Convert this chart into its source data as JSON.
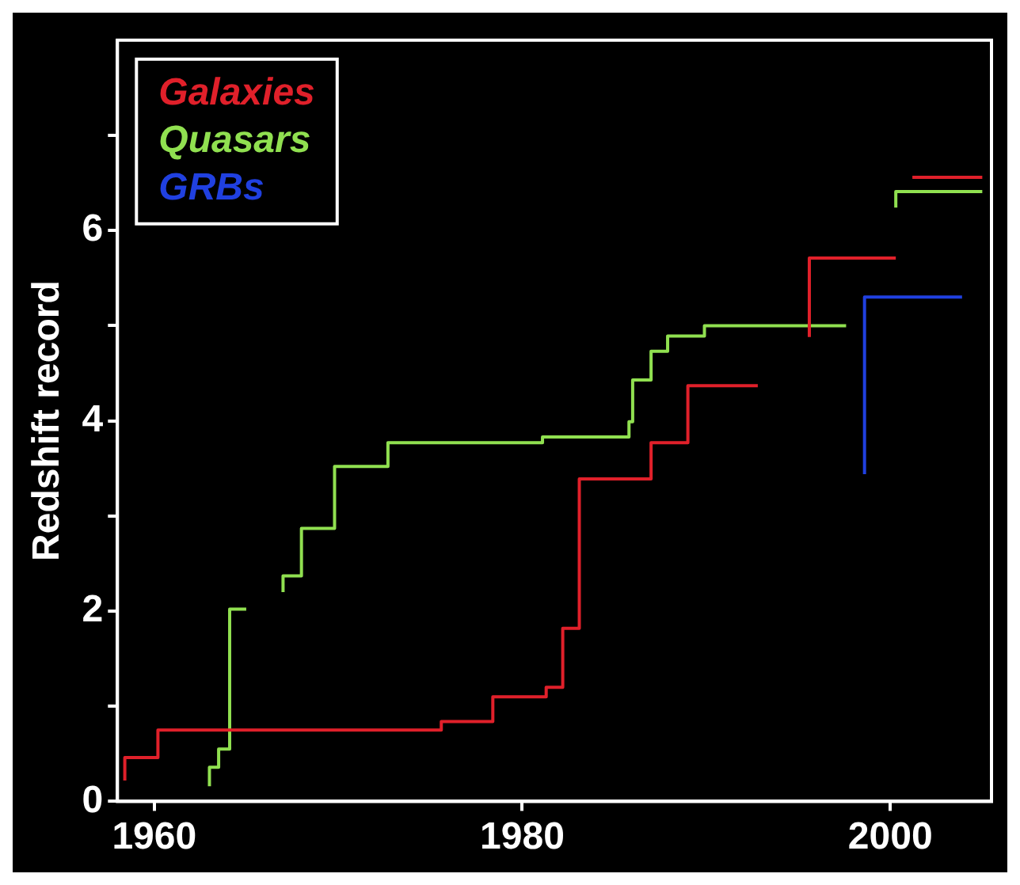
{
  "chart_data": {
    "type": "step",
    "ylabel": "Redshift record",
    "xlim": [
      1958,
      2005.5
    ],
    "ylim": [
      0,
      8
    ],
    "xticks": [
      1960,
      1980,
      2000
    ],
    "yticks": [
      0,
      {
        "value": 1,
        "label": null
      },
      2,
      {
        "value": 3,
        "label": null
      },
      4,
      {
        "value": 5,
        "label": null
      },
      6,
      {
        "value": 7,
        "label": null
      }
    ],
    "grid": false,
    "legend": "top left",
    "marker": "none",
    "line_style": "solid",
    "series": [
      {
        "name": "Galaxies",
        "color": "#e0202a",
        "x": [
          1958.4,
          1960.2,
          1975.6,
          1978.4,
          1981.3,
          1982.2,
          1983.1,
          1987.0,
          1989.0,
          1992.8,
          1992.9,
          1995.6,
          1996.5,
          2000.3,
          2000.4,
          2001.2,
          2005.0
        ],
        "values": [
          0.22,
          0.46,
          0.75,
          0.84,
          1.1,
          1.2,
          1.82,
          3.39,
          3.77,
          4.37,
          null,
          4.88,
          5.71,
          5.71,
          null,
          6.56,
          6.56
        ]
      },
      {
        "name": "Quasars",
        "color": "#90e050",
        "x": [
          1963.0,
          1963.5,
          1964.1,
          1965.0,
          1965.1,
          1967.0,
          1968.0,
          1969.8,
          1972.7,
          1981.1,
          1985.8,
          1986.0,
          1987.0,
          1987.9,
          1989.9,
          1997.6,
          1997.7,
          2000.3,
          2002.2,
          2005.0
        ],
        "values": [
          0.16,
          0.36,
          0.55,
          2.02,
          null,
          2.2,
          2.37,
          2.87,
          3.52,
          3.77,
          3.83,
          3.99,
          4.43,
          4.73,
          4.89,
          5.0,
          null,
          6.24,
          6.41,
          6.41
        ]
      },
      {
        "name": "GRBs",
        "color": "#2040e0",
        "x": [
          1998.6,
          1998.6,
          2003.9
        ],
        "values": [
          3.44,
          4.48,
          5.3
        ]
      }
    ]
  }
}
